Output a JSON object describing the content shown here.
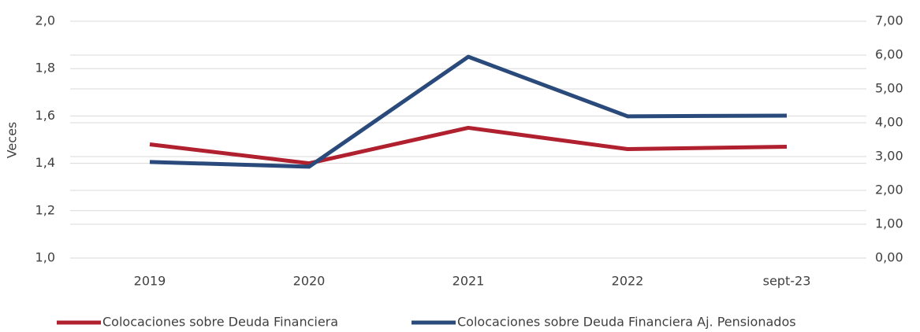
{
  "chart_data": {
    "type": "line",
    "categories": [
      "2019",
      "2020",
      "2021",
      "2022",
      "sept-23"
    ],
    "ylabel": "Veces",
    "ylim": [
      1.0,
      2.0
    ],
    "yticks": [
      {
        "value": 1.0,
        "label": "1,0"
      },
      {
        "value": 1.2,
        "label": "1,2"
      },
      {
        "value": 1.4,
        "label": "1,4"
      },
      {
        "value": 1.6,
        "label": "1,6"
      },
      {
        "value": 1.8,
        "label": "1,8"
      },
      {
        "value": 2.0,
        "label": "2,0"
      }
    ],
    "y2lim": [
      0,
      7
    ],
    "y2ticks": [
      {
        "value": 0,
        "label": "0,00"
      },
      {
        "value": 1,
        "label": "1,00"
      },
      {
        "value": 2,
        "label": "2,00"
      },
      {
        "value": 3,
        "label": "3,00"
      },
      {
        "value": 4,
        "label": "4,00"
      },
      {
        "value": 5,
        "label": "5,00"
      },
      {
        "value": 6,
        "label": "6,00"
      },
      {
        "value": 7,
        "label": "7,00"
      }
    ],
    "grid": true,
    "legend": "bottom",
    "series": [
      {
        "name": "Colocaciones sobre Deuda Financiera",
        "color": "#b0202e",
        "values": [
          1.48,
          1.4,
          1.55,
          1.46,
          1.47
        ]
      },
      {
        "name": "Colocaciones sobre Deuda Financiera Aj. Pensionados",
        "color": "#2a4a7b",
        "axis": "y2",
        "values": [
          2.84,
          2.7,
          5.95,
          4.19,
          4.21
        ]
      }
    ]
  }
}
